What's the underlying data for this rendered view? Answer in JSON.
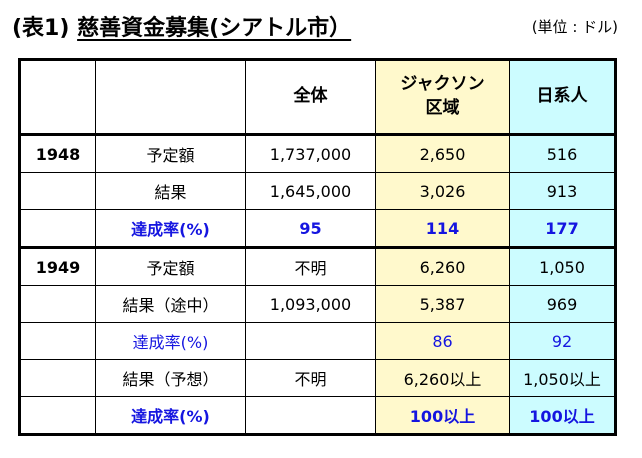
{
  "title": {
    "prefix": "(表1)",
    "main": "慈善資金募集(シアトル市）"
  },
  "unit": "(単位 : ドル)",
  "header": {
    "total": "全体",
    "jackson_line1": "ジャクソン",
    "jackson_line2": "区域",
    "nikkei": "日系人"
  },
  "rows": [
    {
      "year": "1948",
      "label": "予定額",
      "total": "1,737,000",
      "jackson": "2,650",
      "nikkei": "516",
      "style": "normal"
    },
    {
      "year": "",
      "label": "結果",
      "total": "1,645,000",
      "jackson": "3,026",
      "nikkei": "913",
      "style": "normal"
    },
    {
      "year": "",
      "label": "達成率(%)",
      "total": "95",
      "jackson": "114",
      "nikkei": "177",
      "style": "bold-blue"
    },
    {
      "year": "1949",
      "label": "予定額",
      "total": "不明",
      "jackson": "6,260",
      "nikkei": "1,050",
      "style": "normal"
    },
    {
      "year": "",
      "label": "結果（途中）",
      "total": "1,093,000",
      "jackson": "5,387",
      "nikkei": "969",
      "style": "normal"
    },
    {
      "year": "",
      "label": "達成率(%)",
      "total": "",
      "jackson": "86",
      "nikkei": "92",
      "style": "blue"
    },
    {
      "year": "",
      "label": "結果（予想）",
      "total": "不明",
      "jackson": "6,260以上",
      "nikkei": "1,050以上",
      "style": "normal"
    },
    {
      "year": "",
      "label": "達成率(%)",
      "total": "",
      "jackson": "100以上",
      "nikkei": "100以上",
      "style": "bold-blue"
    }
  ],
  "colors": {
    "jackson_bg": "#fff9cc",
    "nikkei_bg": "#ccfcff",
    "rate_text": "#1515e0"
  }
}
